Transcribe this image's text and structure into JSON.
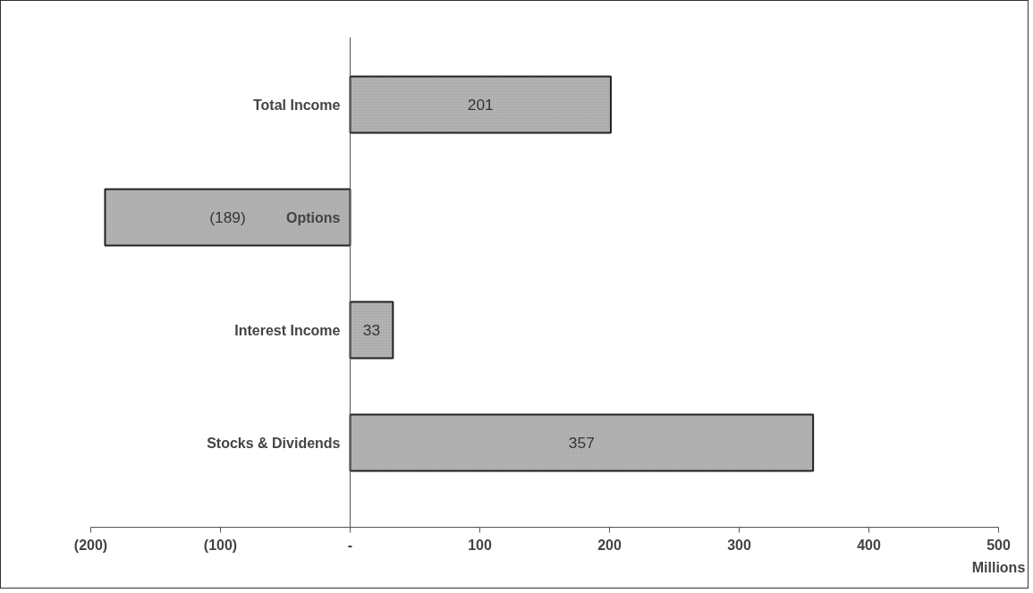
{
  "chart_data": {
    "type": "bar",
    "orientation": "horizontal",
    "xlabel": "Millions",
    "categories": [
      "Total Income",
      "Options",
      "Interest Income",
      "Stocks & Dividends"
    ],
    "values": [
      201,
      -189,
      33,
      357
    ],
    "color": "#b3b3b3",
    "value_labels": [
      "201",
      "(189)",
      "33",
      "357"
    ],
    "xlim": [
      -200,
      500
    ],
    "xticks": [
      {
        "value": -200,
        "label": "(200)"
      },
      {
        "value": -100,
        "label": "(100)"
      },
      {
        "value": 0,
        "label": "-"
      },
      100,
      200,
      300,
      400,
      500
    ],
    "grid": false
  }
}
